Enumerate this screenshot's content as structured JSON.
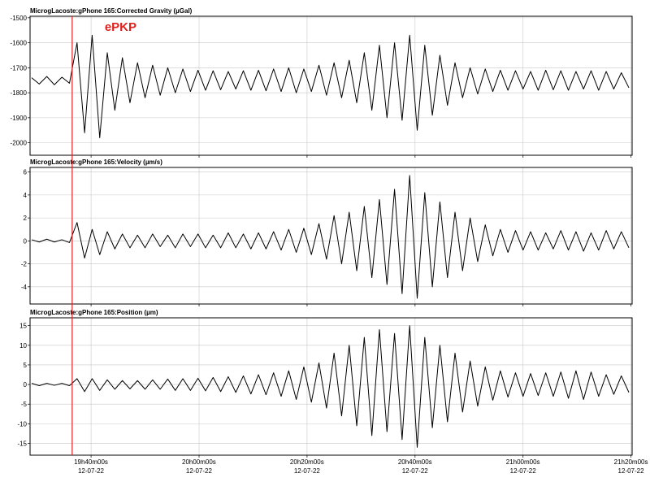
{
  "chart_data": [
    {
      "type": "line",
      "title": "MicrogLacoste:gPhone 165:Corrected Gravity (µGal)",
      "color": "#000000",
      "grid": true,
      "xlim": [
        28.7,
        140.2
      ],
      "ylim": [
        -2050,
        -1494
      ],
      "yticks": [
        -1500,
        -1600,
        -1700,
        -1800,
        -1900,
        -2000
      ],
      "annotations": [
        {
          "text": "ePKP",
          "x": 36.5,
          "color": "#e0201c"
        }
      ],
      "x": [
        29,
        30.4,
        31.8,
        33.2,
        34.6,
        36,
        37.4,
        38.8,
        40.2,
        41.6,
        43,
        44.4,
        45.8,
        47.2,
        48.6,
        50,
        51.4,
        52.8,
        54.2,
        55.6,
        57,
        58.4,
        59.8,
        61.2,
        62.6,
        64,
        65.4,
        66.8,
        68.2,
        69.6,
        71,
        72.4,
        73.8,
        75.2,
        76.6,
        78,
        79.4,
        80.8,
        82.2,
        83.6,
        85,
        86.4,
        87.8,
        89.2,
        90.6,
        92,
        93.4,
        94.8,
        96.2,
        97.6,
        99,
        100.4,
        101.8,
        103.2,
        104.6,
        106,
        107.4,
        108.8,
        110.2,
        111.6,
        113,
        114.4,
        115.8,
        117.2,
        118.6,
        120,
        121.4,
        122.8,
        124.2,
        125.6,
        127,
        128.4,
        129.8,
        131.2,
        132.6,
        134,
        135.4,
        136.8,
        138.2,
        139.6
      ],
      "values": [
        -1740,
        -1765,
        -1735,
        -1768,
        -1738,
        -1762,
        -1600,
        -1960,
        -1570,
        -1980,
        -1640,
        -1870,
        -1660,
        -1840,
        -1680,
        -1820,
        -1690,
        -1810,
        -1700,
        -1800,
        -1705,
        -1795,
        -1710,
        -1790,
        -1712,
        -1788,
        -1715,
        -1785,
        -1712,
        -1790,
        -1710,
        -1792,
        -1705,
        -1795,
        -1700,
        -1800,
        -1705,
        -1795,
        -1690,
        -1810,
        -1680,
        -1820,
        -1670,
        -1840,
        -1640,
        -1870,
        -1610,
        -1900,
        -1600,
        -1910,
        -1570,
        -1950,
        -1610,
        -1890,
        -1650,
        -1850,
        -1680,
        -1820,
        -1700,
        -1805,
        -1705,
        -1795,
        -1710,
        -1790,
        -1712,
        -1785,
        -1715,
        -1790,
        -1710,
        -1788,
        -1712,
        -1790,
        -1715,
        -1785,
        -1712,
        -1790,
        -1715,
        -1785,
        -1720,
        -1780
      ]
    },
    {
      "type": "line",
      "title": "MicrogLacoste:gPhone 165:Velocity (µm/s)",
      "color": "#000000",
      "grid": true,
      "xlim": [
        28.7,
        140.2
      ],
      "ylim": [
        -5.5,
        6.4
      ],
      "yticks": [
        6,
        4,
        2,
        0,
        -2,
        -4
      ],
      "x": [
        29,
        30.4,
        31.8,
        33.2,
        34.6,
        36,
        37.4,
        38.8,
        40.2,
        41.6,
        43,
        44.4,
        45.8,
        47.2,
        48.6,
        50,
        51.4,
        52.8,
        54.2,
        55.6,
        57,
        58.4,
        59.8,
        61.2,
        62.6,
        64,
        65.4,
        66.8,
        68.2,
        69.6,
        71,
        72.4,
        73.8,
        75.2,
        76.6,
        78,
        79.4,
        80.8,
        82.2,
        83.6,
        85,
        86.4,
        87.8,
        89.2,
        90.6,
        92,
        93.4,
        94.8,
        96.2,
        97.6,
        99,
        100.4,
        101.8,
        103.2,
        104.6,
        106,
        107.4,
        108.8,
        110.2,
        111.6,
        113,
        114.4,
        115.8,
        117.2,
        118.6,
        120,
        121.4,
        122.8,
        124.2,
        125.6,
        127,
        128.4,
        129.8,
        131.2,
        132.6,
        134,
        135.4,
        136.8,
        138.2,
        139.6
      ],
      "values": [
        0.1,
        -0.1,
        0.15,
        -0.1,
        0.1,
        -0.15,
        1.6,
        -1.5,
        1,
        -1.2,
        0.8,
        -0.7,
        0.6,
        -0.6,
        0.5,
        -0.6,
        0.6,
        -0.5,
        0.5,
        -0.6,
        0.6,
        -0.5,
        0.6,
        -0.6,
        0.5,
        -0.6,
        0.7,
        -0.6,
        0.6,
        -0.7,
        0.7,
        -0.7,
        0.8,
        -0.8,
        1,
        -1,
        1.1,
        -1.2,
        1.5,
        -1.6,
        2.2,
        -2,
        2.5,
        -2.6,
        3,
        -3.2,
        3.6,
        -3.8,
        4.5,
        -4.6,
        5.7,
        -5,
        4.2,
        -4,
        3.4,
        -3.2,
        2.5,
        -2.6,
        2,
        -1.8,
        1.4,
        -1.3,
        1,
        -1,
        0.9,
        -0.8,
        0.8,
        -0.8,
        0.7,
        -0.7,
        0.9,
        -0.8,
        0.8,
        -0.9,
        0.7,
        -0.8,
        0.9,
        -0.7,
        0.8,
        -0.6
      ]
    },
    {
      "type": "line",
      "title": "MicrogLacoste:gPhone 165:Position (µm)",
      "color": "#000000",
      "grid": true,
      "xlim": [
        28.7,
        140.2
      ],
      "ylim": [
        -18,
        17
      ],
      "yticks": [
        15,
        10,
        5,
        0,
        -5,
        -10,
        -15
      ],
      "xticks": [
        {
          "value": 40,
          "label": "19h40m00s\n12-07-22"
        },
        {
          "value": 60,
          "label": "20h00m00s\n12-07-22"
        },
        {
          "value": 80,
          "label": "20h20m00s\n12-07-22"
        },
        {
          "value": 100,
          "label": "20h40m00s\n12-07-22"
        },
        {
          "value": 120,
          "label": "21h00m00s\n12-07-22"
        },
        {
          "value": 140,
          "label": "21h20m00s\n12-07-22"
        }
      ],
      "x": [
        29,
        30.4,
        31.8,
        33.2,
        34.6,
        36,
        37.4,
        38.8,
        40.2,
        41.6,
        43,
        44.4,
        45.8,
        47.2,
        48.6,
        50,
        51.4,
        52.8,
        54.2,
        55.6,
        57,
        58.4,
        59.8,
        61.2,
        62.6,
        64,
        65.4,
        66.8,
        68.2,
        69.6,
        71,
        72.4,
        73.8,
        75.2,
        76.6,
        78,
        79.4,
        80.8,
        82.2,
        83.6,
        85,
        86.4,
        87.8,
        89.2,
        90.6,
        92,
        93.4,
        94.8,
        96.2,
        97.6,
        99,
        100.4,
        101.8,
        103.2,
        104.6,
        106,
        107.4,
        108.8,
        110.2,
        111.6,
        113,
        114.4,
        115.8,
        117.2,
        118.6,
        120,
        121.4,
        122.8,
        124.2,
        125.6,
        127,
        128.4,
        129.8,
        131.2,
        132.6,
        134,
        135.4,
        136.8,
        138.2,
        139.6
      ],
      "values": [
        0.3,
        -0.3,
        0.3,
        -0.2,
        0.3,
        -0.3,
        1.5,
        -1.8,
        1.5,
        -1.5,
        1.2,
        -1.2,
        1,
        -1.1,
        1,
        -1.2,
        1.2,
        -1.2,
        1.4,
        -1.5,
        1.5,
        -1.5,
        1.6,
        -1.6,
        1.8,
        -1.8,
        2,
        -2,
        2.2,
        -2.4,
        2.5,
        -2.6,
        3,
        -3,
        3.5,
        -3.8,
        4.5,
        -4.5,
        5.5,
        -6,
        8,
        -8,
        10,
        -10.5,
        12,
        -13,
        14,
        -12,
        13,
        -14,
        15,
        -16,
        12,
        -11,
        10,
        -9.5,
        8,
        -7,
        6,
        -5.5,
        4.5,
        -4,
        3.5,
        -3.2,
        3,
        -3,
        2.8,
        -2.8,
        3,
        -3,
        3.2,
        -3.5,
        3.5,
        -3.8,
        3.2,
        -3,
        2.5,
        -2.5,
        2.2,
        -2
      ]
    }
  ]
}
